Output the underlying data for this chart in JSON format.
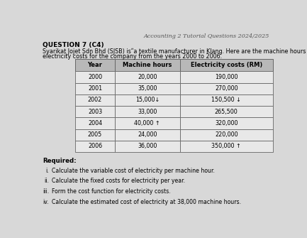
{
  "title": "Accounting 2 Tutorial Questions 2024/2025",
  "question_header": "QUESTION 7 (C4)",
  "question_line1": "Syarikat Jojet Sdn Bhd (SJSB) isʺa textile manufacturer in Klang. Here are the machine hours and",
  "question_line2": "electricity costs for the company from the years 2000 to 2006.",
  "table_headers": [
    "Year",
    "Machine hours",
    "Electricity costs (RM)"
  ],
  "table_data": [
    [
      "2000",
      "20,000",
      "190,000",
      "",
      ""
    ],
    [
      "2001",
      "35,000",
      "270,000",
      "",
      ""
    ],
    [
      "2002",
      "15,000↓",
      "150,500 ↓",
      "",
      ""
    ],
    [
      "2003",
      "33,000",
      "265,500",
      "",
      ""
    ],
    [
      "2004",
      "40,000 ↑",
      "320,000",
      "",
      ""
    ],
    [
      "2005",
      "24,000",
      "220,000",
      "",
      ""
    ],
    [
      "2006",
      "36,000",
      "350,000 ↑",
      "",
      ""
    ]
  ],
  "required_label": "Required:",
  "required_items": [
    [
      "i.",
      "Calculate the variable cost of electricity per machine hour."
    ],
    [
      "ii.",
      "Calculate the fixed costs for electricity per year."
    ],
    [
      "iii.",
      "Form the cost function for electricity costs."
    ],
    [
      "iv.",
      "Calculate the estimated cost of electricity at 38,000 machine hours."
    ]
  ],
  "bg_color": "#d8d8d8",
  "table_header_bg": "#b8b8b8",
  "table_cell_bg": "#e8e8e8",
  "table_border_color": "#666666",
  "title_color": "#555555"
}
